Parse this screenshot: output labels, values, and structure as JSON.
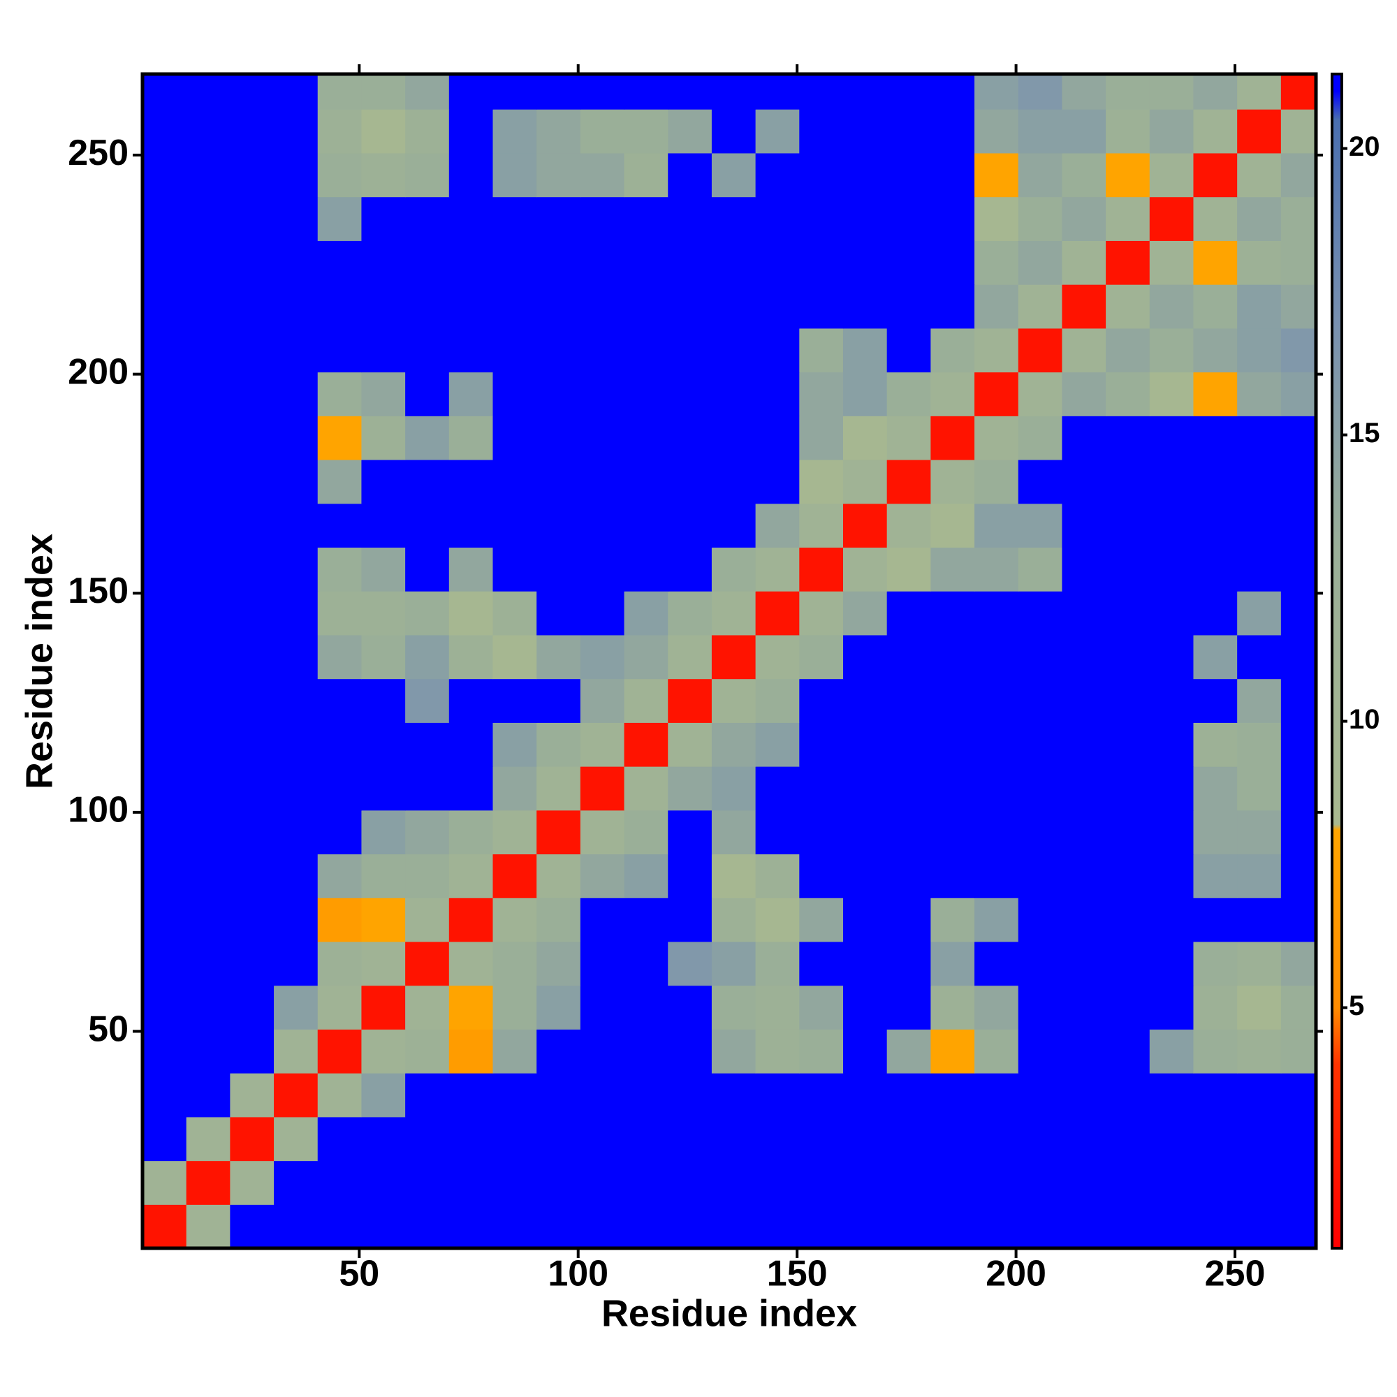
{
  "chart_data": {
    "type": "heatmap",
    "xlabel": "Residue index",
    "ylabel": "Residue index",
    "xbins": [
      0.5,
      10.5,
      20.5,
      30.5,
      40.5,
      50.5,
      60.5,
      70.5,
      80.5,
      90.5,
      100.5,
      110.5,
      120.5,
      130.5,
      140.5,
      150.5,
      160.5,
      170.5,
      180.5,
      190.5,
      200.5,
      210.5,
      220.5,
      230.5,
      240.5,
      250.5,
      260.5,
      268.5
    ],
    "ybins": [
      0.5,
      10.5,
      20.5,
      30.5,
      40.5,
      50.5,
      60.5,
      70.5,
      80.5,
      90.5,
      100.5,
      110.5,
      120.5,
      130.5,
      140.5,
      150.5,
      160.5,
      170.5,
      180.5,
      190.5,
      200.5,
      210.5,
      220.5,
      230.5,
      240.5,
      250.5,
      260.5,
      268.5
    ],
    "z": [
      [
        2,
        11,
        21,
        21,
        21,
        21,
        21,
        21,
        21,
        21,
        21,
        21,
        21,
        21,
        21,
        21,
        21,
        21,
        21,
        21,
        21,
        21,
        21,
        21,
        21,
        21,
        21
      ],
      [
        11,
        2,
        11,
        21,
        21,
        21,
        21,
        21,
        21,
        21,
        21,
        21,
        21,
        21,
        21,
        21,
        21,
        21,
        21,
        21,
        21,
        21,
        21,
        21,
        21,
        21,
        21
      ],
      [
        21,
        11,
        2,
        11,
        21,
        21,
        21,
        21,
        21,
        21,
        21,
        21,
        21,
        21,
        21,
        21,
        21,
        21,
        21,
        21,
        21,
        21,
        21,
        21,
        21,
        21,
        21
      ],
      [
        21,
        21,
        11,
        2,
        11,
        15,
        21,
        21,
        21,
        21,
        21,
        21,
        21,
        21,
        21,
        21,
        21,
        21,
        21,
        21,
        21,
        21,
        21,
        21,
        21,
        21,
        21
      ],
      [
        21,
        21,
        21,
        11,
        2,
        11,
        12,
        7,
        14,
        21,
        21,
        21,
        21,
        14,
        12,
        13,
        21,
        14,
        8,
        13,
        21,
        21,
        21,
        15,
        13,
        12,
        13
      ],
      [
        21,
        21,
        21,
        15,
        11,
        2,
        11,
        8,
        13,
        15,
        21,
        21,
        21,
        13,
        12,
        14,
        21,
        21,
        12,
        14,
        21,
        21,
        21,
        21,
        12,
        9,
        13
      ],
      [
        21,
        21,
        21,
        21,
        12,
        11,
        2,
        11,
        13,
        14,
        21,
        21,
        16,
        15,
        13,
        21,
        21,
        21,
        15,
        21,
        21,
        21,
        21,
        21,
        13,
        12,
        14
      ],
      [
        21,
        21,
        21,
        21,
        7,
        8,
        11,
        2,
        11,
        13,
        21,
        21,
        21,
        12,
        9,
        14,
        21,
        21,
        13,
        15,
        21,
        21,
        21,
        21,
        21,
        21,
        21
      ],
      [
        21,
        21,
        21,
        21,
        14,
        13,
        13,
        11,
        2,
        11,
        14,
        15,
        21,
        9,
        12,
        21,
        21,
        21,
        21,
        21,
        21,
        21,
        21,
        21,
        15,
        15,
        21
      ],
      [
        21,
        21,
        21,
        21,
        21,
        15,
        14,
        13,
        11,
        2,
        11,
        13,
        21,
        14,
        21,
        21,
        21,
        21,
        21,
        21,
        21,
        21,
        21,
        21,
        14,
        14,
        21
      ],
      [
        21,
        21,
        21,
        21,
        21,
        21,
        21,
        21,
        14,
        11,
        2,
        11,
        14,
        15,
        21,
        21,
        21,
        21,
        21,
        21,
        21,
        21,
        21,
        21,
        14,
        13,
        21
      ],
      [
        21,
        21,
        21,
        21,
        21,
        21,
        21,
        21,
        15,
        13,
        11,
        2,
        11,
        14,
        15,
        21,
        21,
        21,
        21,
        21,
        21,
        21,
        21,
        21,
        12,
        13,
        21
      ],
      [
        21,
        21,
        21,
        21,
        21,
        21,
        16,
        21,
        21,
        21,
        14,
        11,
        2,
        11,
        13,
        21,
        21,
        21,
        21,
        21,
        21,
        21,
        21,
        21,
        21,
        14,
        21
      ],
      [
        21,
        21,
        21,
        21,
        14,
        13,
        15,
        12,
        9,
        14,
        15,
        14,
        11,
        2,
        11,
        13,
        21,
        21,
        21,
        21,
        21,
        21,
        21,
        21,
        15,
        21,
        21
      ],
      [
        21,
        21,
        21,
        21,
        12,
        12,
        13,
        9,
        12,
        21,
        21,
        15,
        13,
        11,
        2,
        11,
        14,
        21,
        21,
        21,
        21,
        21,
        21,
        21,
        21,
        15,
        21
      ],
      [
        21,
        21,
        21,
        21,
        13,
        14,
        21,
        14,
        21,
        21,
        21,
        21,
        21,
        13,
        11,
        2,
        11,
        9,
        14,
        14,
        13,
        21,
        21,
        21,
        21,
        21,
        21
      ],
      [
        21,
        21,
        21,
        21,
        21,
        21,
        21,
        21,
        21,
        21,
        21,
        21,
        21,
        21,
        14,
        11,
        2,
        11,
        9,
        15,
        15,
        21,
        21,
        21,
        21,
        21,
        21
      ],
      [
        21,
        21,
        21,
        21,
        14,
        21,
        21,
        21,
        21,
        21,
        21,
        21,
        21,
        21,
        21,
        9,
        11,
        2,
        11,
        13,
        21,
        21,
        21,
        21,
        21,
        21,
        21
      ],
      [
        21,
        21,
        21,
        21,
        8,
        12,
        15,
        13,
        21,
        21,
        21,
        21,
        21,
        21,
        21,
        14,
        9,
        11,
        2,
        11,
        13,
        21,
        21,
        21,
        21,
        21,
        21
      ],
      [
        21,
        21,
        21,
        21,
        13,
        14,
        21,
        15,
        21,
        21,
        21,
        21,
        21,
        21,
        21,
        14,
        15,
        13,
        11,
        2,
        11,
        14,
        13,
        9,
        8,
        14,
        15
      ],
      [
        21,
        21,
        21,
        21,
        21,
        21,
        21,
        21,
        21,
        21,
        21,
        21,
        21,
        21,
        21,
        13,
        15,
        21,
        13,
        11,
        2,
        11,
        14,
        13,
        14,
        15,
        16
      ],
      [
        21,
        21,
        21,
        21,
        21,
        21,
        21,
        21,
        21,
        21,
        21,
        21,
        21,
        21,
        21,
        21,
        21,
        21,
        21,
        14,
        11,
        2,
        11,
        14,
        13,
        15,
        14
      ],
      [
        21,
        21,
        21,
        21,
        21,
        21,
        21,
        21,
        21,
        21,
        21,
        21,
        21,
        21,
        21,
        21,
        21,
        21,
        21,
        13,
        14,
        11,
        2,
        11,
        8,
        12,
        13
      ],
      [
        21,
        21,
        21,
        21,
        15,
        21,
        21,
        21,
        21,
        21,
        21,
        21,
        21,
        21,
        21,
        21,
        21,
        21,
        21,
        9,
        13,
        14,
        11,
        2,
        11,
        14,
        13
      ],
      [
        21,
        21,
        21,
        21,
        13,
        12,
        13,
        21,
        15,
        14,
        14,
        12,
        21,
        15,
        21,
        21,
        21,
        21,
        21,
        8,
        14,
        13,
        8,
        11,
        2,
        11,
        14
      ],
      [
        21,
        21,
        21,
        21,
        12,
        9,
        12,
        21,
        15,
        14,
        13,
        13,
        14,
        21,
        15,
        21,
        21,
        21,
        21,
        14,
        15,
        15,
        12,
        14,
        11,
        2,
        11
      ],
      [
        21,
        21,
        21,
        21,
        13,
        13,
        14,
        21,
        21,
        21,
        21,
        21,
        21,
        21,
        21,
        21,
        21,
        21,
        21,
        15,
        16,
        14,
        13,
        13,
        14,
        11,
        2
      ]
    ],
    "xlim": [
      0.5,
      268.5
    ],
    "ylim": [
      0.5,
      268.5
    ],
    "xticks": [
      50,
      100,
      150,
      200,
      250
    ],
    "yticks": [
      50,
      100,
      150,
      200,
      250
    ],
    "colorbar": {
      "lim": [
        0.8,
        21.3
      ],
      "ticks": [
        5,
        10,
        15,
        20
      ]
    },
    "colorscale": [
      [
        0.8,
        "#ff0000"
      ],
      [
        4,
        "#ff3300"
      ],
      [
        5,
        "#ff8c00"
      ],
      [
        8.1,
        "#ffa500"
      ],
      [
        8.2,
        "#a8b890"
      ],
      [
        13,
        "#9aaf98"
      ],
      [
        17,
        "#7890b0"
      ],
      [
        20.5,
        "#4a6fb0"
      ],
      [
        21,
        "#0000ff"
      ]
    ]
  }
}
